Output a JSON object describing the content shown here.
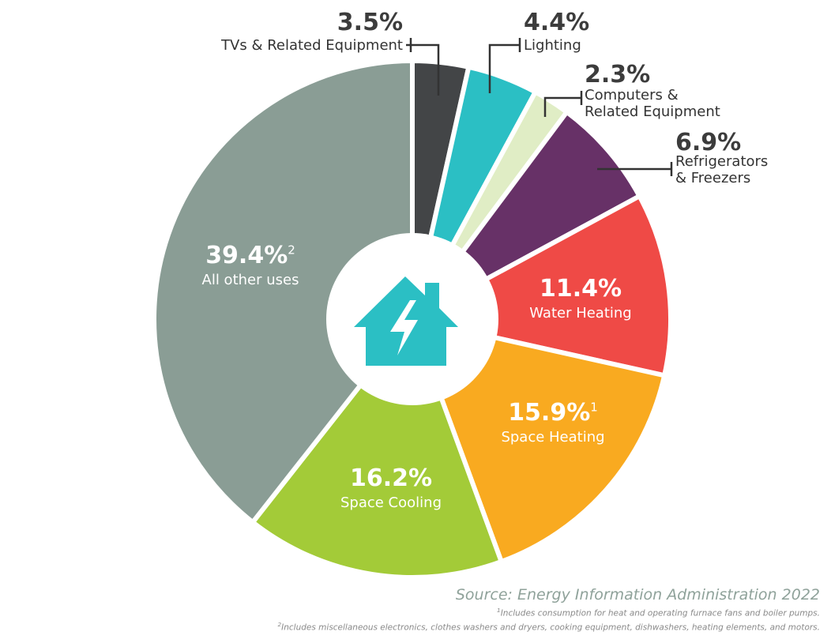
{
  "chart_data": {
    "type": "pie",
    "title": "",
    "slices": [
      {
        "label": "TVs & Related Equipment",
        "value": 3.5,
        "display": "3.5%",
        "color": "#434547",
        "sup": ""
      },
      {
        "label": "Lighting",
        "value": 4.4,
        "display": "4.4%",
        "color": "#2bbfc4",
        "sup": ""
      },
      {
        "label": "Computers & Related Equipment",
        "value": 2.3,
        "display": "2.3%",
        "color": "#e0edc5",
        "sup": ""
      },
      {
        "label": "Refrigerators & Freezers",
        "value": 6.9,
        "display": "6.9%",
        "color": "#673167",
        "sup": ""
      },
      {
        "label": "Water Heating",
        "value": 11.4,
        "display": "11.4%",
        "color": "#ef4a46",
        "sup": ""
      },
      {
        "label": "Space Heating",
        "value": 15.9,
        "display": "15.9%",
        "color": "#f9aa20",
        "sup": "1"
      },
      {
        "label": "Space Cooling",
        "value": 16.2,
        "display": "16.2%",
        "color": "#a3cb38",
        "sup": ""
      },
      {
        "label": "All other uses",
        "value": 39.4,
        "display": "39.4%",
        "color": "#8a9d95",
        "sup": "2"
      }
    ],
    "center_icon": "house-lightning-icon",
    "icon_color": "#2bbfc4"
  },
  "source": "Source: Energy Information Administration 2022",
  "footnotes": [
    {
      "mark": "1",
      "text": "Includes consumption for heat and operating furnace fans and boiler pumps."
    },
    {
      "mark": "2",
      "text": "Includes miscellaneous electronics, clothes washers and dryers, cooking equipment, dishwashers, heating elements, and motors."
    }
  ]
}
